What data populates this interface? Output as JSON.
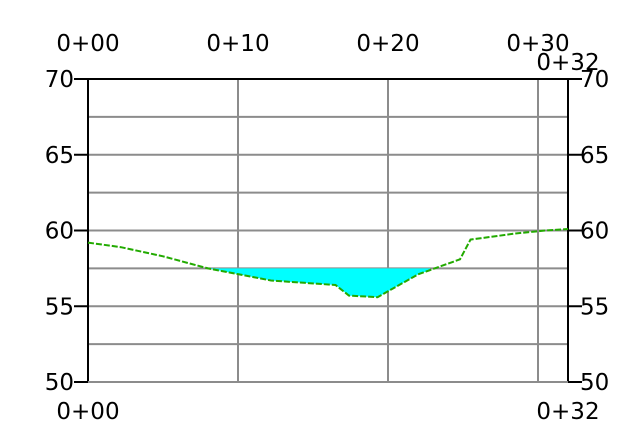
{
  "chart_data": {
    "type": "area",
    "title": "",
    "xlabel": "",
    "ylabel": "",
    "xlim": [
      0,
      32
    ],
    "ylim": [
      50,
      70
    ],
    "x_ticks_top": [
      {
        "value": 0,
        "label": "0+00"
      },
      {
        "value": 10,
        "label": "0+10"
      },
      {
        "value": 20,
        "label": "0+20"
      },
      {
        "value": 30,
        "label": "0+30"
      },
      {
        "value": 32,
        "label": "0+32"
      }
    ],
    "x_ticks_bottom": [
      {
        "value": 0,
        "label": "0+00"
      },
      {
        "value": 32,
        "label": "0+32"
      }
    ],
    "y_ticks": [
      {
        "value": 70,
        "label": "70"
      },
      {
        "value": 65,
        "label": "65"
      },
      {
        "value": 60,
        "label": "60"
      },
      {
        "value": 55,
        "label": "55"
      },
      {
        "value": 50,
        "label": "50"
      }
    ],
    "y_grid_values": [
      70,
      67.5,
      65,
      62.5,
      60,
      57.5,
      55,
      52.5,
      50
    ],
    "x_grid_values": [
      10,
      20,
      30
    ],
    "grid": true,
    "series": [
      {
        "kind": "ground-profile",
        "color": "#22aa00",
        "dashed": true,
        "x": [
          0,
          2.2,
          5,
          8,
          12.2,
          16.5,
          17.4,
          19.3,
          22,
          24.8,
          25.5,
          28.5,
          30.5,
          32
        ],
        "y": [
          59.2,
          58.9,
          58.3,
          57.5,
          56.7,
          56.4,
          55.7,
          55.6,
          57.1,
          58.1,
          59.4,
          59.8,
          60.0,
          60.1
        ]
      },
      {
        "kind": "water-fill",
        "color": "#00ffff",
        "water_level": 57.5,
        "x_start": 8,
        "x_end": 22.8
      }
    ]
  }
}
